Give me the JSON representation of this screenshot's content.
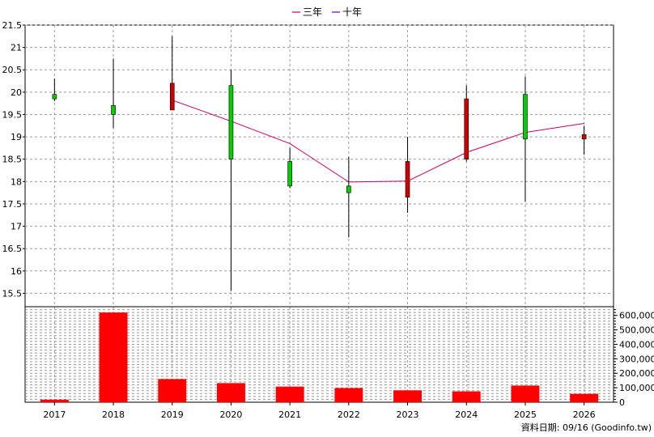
{
  "chart_data": [
    {
      "type": "candlestick",
      "legend": [
        {
          "name": "三年",
          "color": "#cc0066"
        },
        {
          "name": "十年",
          "color": "#6600cc"
        }
      ],
      "categories": [
        "2017",
        "2018",
        "2019",
        "2020",
        "2021",
        "2022",
        "2023",
        "2024",
        "2025",
        "2026"
      ],
      "ylim": [
        15.2,
        21.5
      ],
      "yticks": [
        "15.5",
        "16",
        "16.5",
        "17",
        "17.5",
        "18",
        "18.5",
        "19",
        "19.5",
        "20",
        "20.5",
        "21",
        "21.5"
      ],
      "grid": true,
      "candles": [
        {
          "open": 19.95,
          "close": 19.85,
          "high": 20.3,
          "low": 19.8
        },
        {
          "open": 19.7,
          "close": 19.5,
          "high": 20.75,
          "low": 19.2
        },
        {
          "open": 19.6,
          "close": 20.2,
          "high": 21.25,
          "low": 19.6
        },
        {
          "open": 20.15,
          "close": 18.5,
          "high": 20.5,
          "low": 15.55
        },
        {
          "open": 18.45,
          "close": 17.9,
          "high": 18.75,
          "low": 17.85
        },
        {
          "open": 17.9,
          "close": 17.75,
          "high": 18.55,
          "low": 16.75
        },
        {
          "open": 17.65,
          "close": 18.45,
          "high": 19.0,
          "low": 17.3
        },
        {
          "open": 18.5,
          "close": 19.85,
          "high": 20.15,
          "low": 18.45
        },
        {
          "open": 19.95,
          "close": 18.95,
          "high": 20.35,
          "low": 17.55
        },
        {
          "open": 18.95,
          "close": 19.05,
          "high": 19.25,
          "low": 18.6
        }
      ],
      "line_three_year": [
        null,
        null,
        19.82,
        19.35,
        18.85,
        17.99,
        18.01,
        18.65,
        19.1,
        19.3
      ],
      "up_color": "#cc0000",
      "down_color": "#00cc00"
    },
    {
      "type": "bar",
      "categories": [
        "2017",
        "2018",
        "2019",
        "2020",
        "2021",
        "2022",
        "2023",
        "2024",
        "2025",
        "2026"
      ],
      "values": [
        18000,
        620000,
        160000,
        132000,
        108000,
        98000,
        82000,
        75000,
        115000,
        58000
      ],
      "ylim": [
        0,
        660000
      ],
      "yticks": [
        "0",
        "100,000",
        "200,000",
        "300,000",
        "400,000",
        "500,000",
        "600,000"
      ],
      "bar_color": "#ff0000",
      "grid": true
    }
  ],
  "footer": {
    "source_text": "資料日期: 09/16  (Goodinfo.tw)"
  }
}
